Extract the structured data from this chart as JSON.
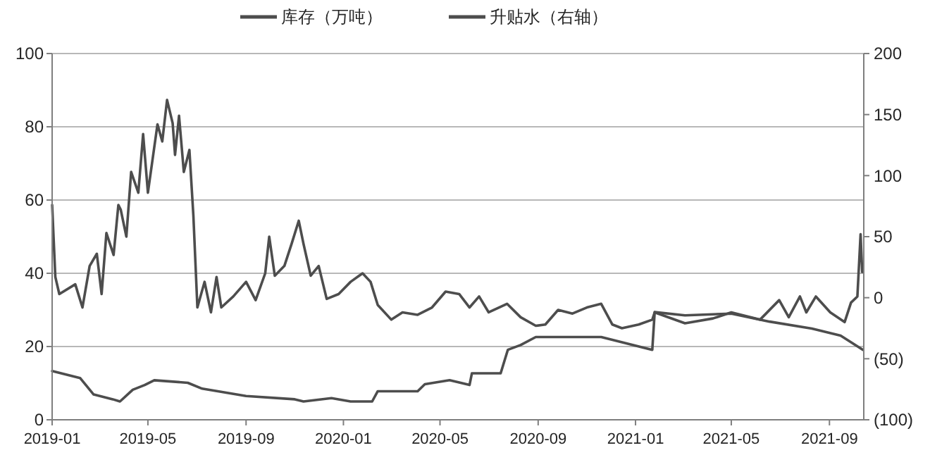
{
  "chart_data": {
    "type": "line",
    "xlim": [
      "2019-01-01",
      "2021-10-14"
    ],
    "xticks": [
      "2019-01",
      "2019-05",
      "2019-09",
      "2020-01",
      "2020-05",
      "2020-09",
      "2021-01",
      "2021-05",
      "2021-09"
    ],
    "ylim": [
      0,
      100
    ],
    "yticks": [
      0,
      20,
      40,
      60,
      80,
      100
    ],
    "y2lim": [
      -100,
      200
    ],
    "y2ticks": [
      {
        "value": -100,
        "label": "(100)"
      },
      {
        "value": -50,
        "label": "(50)"
      },
      0,
      50,
      100,
      150,
      200
    ],
    "grid": "y",
    "legend": "top",
    "marker": "none",
    "line_style": "solid",
    "series": [
      {
        "name": "库存（万吨）",
        "color": "#4d4d4d",
        "x": [
          "2019-01-01",
          "2019-02-05",
          "2019-02-22",
          "2019-03-18",
          "2019-03-27",
          "2019-04-12",
          "2019-04-27",
          "2019-05-09",
          "2019-06-20",
          "2019-07-08",
          "2019-09-01",
          "2019-11-01",
          "2019-11-12",
          "2019-12-17",
          "2020-01-10",
          "2020-02-06",
          "2020-02-13",
          "2020-04-03",
          "2020-04-12",
          "2020-05-13",
          "2020-06-07",
          "2020-06-10",
          "2020-07-16",
          "2020-07-25",
          "2020-08-10",
          "2020-08-29",
          "2020-11-19",
          "2021-01-22",
          "2021-01-25",
          "2021-03-04",
          "2021-05-01",
          "2021-06-18",
          "2021-08-10",
          "2021-09-15",
          "2021-10-13"
        ],
        "values": [
          13.3,
          11.4,
          6.9,
          5.6,
          5.0,
          8.2,
          9.5,
          10.8,
          10.1,
          8.5,
          6.5,
          5.6,
          5.0,
          5.9,
          5.0,
          5.0,
          7.8,
          7.8,
          9.7,
          10.8,
          9.5,
          12.7,
          12.7,
          19.1,
          20.4,
          22.6,
          22.6,
          19.1,
          29.4,
          28.5,
          29.0,
          26.8,
          24.9,
          23,
          19.1
        ]
      },
      {
        "name": "升贴水（右轴）",
        "color": "#4d4d4d",
        "axis": "y2",
        "x": [
          "2019-01-01",
          "2019-01-05",
          "2019-01-10",
          "2019-01-30",
          "2019-02-08",
          "2019-02-17",
          "2019-02-26",
          "2019-03-04",
          "2019-03-10",
          "2019-03-19",
          "2019-03-25",
          "2019-03-28",
          "2019-04-04",
          "2019-04-10",
          "2019-04-19",
          "2019-04-25",
          "2019-05-01",
          "2019-05-13",
          "2019-05-19",
          "2019-05-25",
          "2019-06-01",
          "2019-06-04",
          "2019-06-09",
          "2019-06-15",
          "2019-06-22",
          "2019-06-27",
          "2019-07-02",
          "2019-07-11",
          "2019-07-19",
          "2019-07-26",
          "2019-08-01",
          "2019-08-16",
          "2019-09-01",
          "2019-09-13",
          "2019-09-25",
          "2019-09-30",
          "2019-10-07",
          "2019-10-19",
          "2019-10-28",
          "2019-11-06",
          "2019-11-12",
          "2019-11-21",
          "2019-12-01",
          "2019-12-11",
          "2019-12-26",
          "2020-01-10",
          "2020-01-25",
          "2020-02-04",
          "2020-02-13",
          "2020-03-01",
          "2020-03-15",
          "2020-04-03",
          "2020-04-21",
          "2020-05-08",
          "2020-05-25",
          "2020-06-07",
          "2020-06-19",
          "2020-07-01",
          "2020-07-24",
          "2020-08-10",
          "2020-08-29",
          "2020-09-10",
          "2020-09-26",
          "2020-10-14",
          "2020-11-01",
          "2020-11-19",
          "2020-12-03",
          "2020-12-15",
          "2021-01-05",
          "2021-01-22",
          "2021-01-25",
          "2021-03-04",
          "2021-04-08",
          "2021-05-01",
          "2021-06-06",
          "2021-06-30",
          "2021-07-12",
          "2021-07-26",
          "2021-08-03",
          "2021-08-15",
          "2021-09-02",
          "2021-09-20",
          "2021-09-28",
          "2021-10-06",
          "2021-10-10",
          "2021-10-12"
        ],
        "values": [
          76,
          17,
          3,
          11,
          -8,
          26,
          36,
          3,
          53,
          35,
          76,
          72,
          50,
          103,
          86,
          134,
          86,
          142,
          128,
          162,
          143,
          117,
          149,
          103,
          121,
          67,
          -8,
          13,
          -12,
          17,
          -8,
          1,
          13,
          -2,
          20,
          50,
          18,
          26,
          44,
          63,
          44,
          18,
          26,
          -1,
          3,
          13,
          20,
          13,
          -6,
          -18,
          -12,
          -14,
          -8,
          5,
          3,
          -8,
          1,
          -12,
          -5,
          -16,
          -23,
          -22,
          -10,
          -13,
          -8,
          -5,
          -22,
          -25,
          -22,
          -18,
          -12,
          -21,
          -17,
          -12,
          -18,
          -2,
          -16,
          1,
          -12,
          1,
          -12,
          -20,
          -4,
          1,
          52,
          21
        ]
      }
    ]
  }
}
